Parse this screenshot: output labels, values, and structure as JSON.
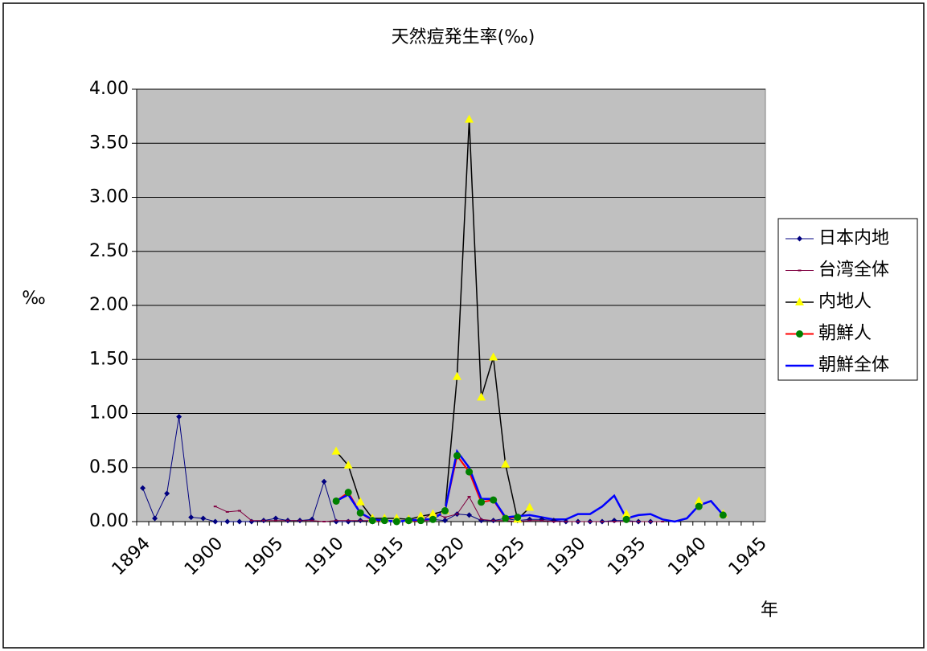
{
  "chart_data": {
    "type": "line",
    "title": "天然痘発生率(‰)",
    "x_label": "年",
    "y_label": "‰",
    "categories": [
      "1894",
      null,
      null,
      null,
      null,
      null,
      "1900",
      null,
      null,
      null,
      null,
      "1905",
      null,
      null,
      null,
      null,
      "1910",
      null,
      null,
      null,
      null,
      "1915",
      null,
      null,
      null,
      null,
      "1920",
      null,
      null,
      null,
      null,
      "1925",
      null,
      null,
      null,
      null,
      "1930",
      null,
      null,
      null,
      null,
      "1935",
      null,
      null,
      null,
      null,
      "1940",
      null,
      null,
      null,
      null,
      "1945"
    ],
    "ylim": [
      0,
      4
    ],
    "yticks": [
      {
        "value": 0,
        "label": "0.00"
      },
      {
        "value": 0.5,
        "label": "0.50"
      },
      {
        "value": 1,
        "label": "1.00"
      },
      {
        "value": 1.5,
        "label": "1.50"
      },
      {
        "value": 2,
        "label": "2.00"
      },
      {
        "value": 2.5,
        "label": "2.50"
      },
      {
        "value": 3,
        "label": "3.00"
      },
      {
        "value": 3.5,
        "label": "3.50"
      },
      {
        "value": 4,
        "label": "4.00"
      }
    ],
    "grid": true,
    "legend": "right",
    "series": [
      {
        "name": "日本内地",
        "color": "#000080",
        "marker": "diamond",
        "width": 1,
        "values": [
          0.31,
          0.03,
          0.26,
          0.97,
          0.04,
          0.03,
          0.0,
          0.0,
          0.0,
          0.0,
          0.01,
          0.03,
          0.01,
          0.01,
          0.02,
          0.37,
          0.0,
          0.0,
          0.01,
          0.0,
          0.01,
          0.01,
          0.0,
          0.01,
          0.02,
          0.01,
          0.07,
          0.06,
          0.01,
          0.01,
          0.03,
          0.01,
          0.02,
          0.02,
          0.01,
          0.0,
          0.0,
          0.0,
          0.0,
          0.01,
          0.01,
          0.0,
          0.0,
          null,
          null,
          null,
          null,
          null,
          null,
          null,
          null,
          null
        ]
      },
      {
        "name": "台湾全体",
        "color": "#800040",
        "marker": "dash",
        "width": 1,
        "values": [
          null,
          null,
          null,
          null,
          null,
          null,
          0.14,
          0.09,
          0.1,
          0.01,
          0.01,
          0.01,
          0.01,
          0.01,
          0.01,
          0.0,
          0.01,
          0.01,
          0.01,
          0.01,
          0.0,
          0.0,
          0.0,
          0.01,
          0.08,
          0.04,
          0.07,
          0.23,
          0.02,
          0.01,
          0.01,
          0.0,
          0.01,
          0.01,
          0.0,
          0.0,
          0.0,
          0.0,
          0.0,
          0.0,
          0.0,
          0.0,
          0.0,
          0.0,
          null,
          null,
          null,
          null,
          null,
          null,
          null,
          null
        ]
      },
      {
        "name": "内地人",
        "color": "#000000",
        "marker": "triangle",
        "marker_color": "#ffff00",
        "width": 1.5,
        "values": [
          null,
          null,
          null,
          null,
          null,
          null,
          null,
          null,
          null,
          null,
          null,
          null,
          null,
          null,
          null,
          null,
          0.65,
          0.52,
          0.18,
          0.03,
          0.03,
          0.03,
          0.02,
          0.05,
          0.07,
          0.1,
          1.34,
          3.72,
          1.15,
          1.52,
          0.53,
          0.02,
          0.13,
          null,
          null,
          null,
          null,
          null,
          null,
          null,
          0.07,
          null,
          null,
          null,
          null,
          null,
          0.19,
          null,
          0.07,
          null,
          null,
          null
        ]
      },
      {
        "name": "朝鮮人",
        "color": "#ff0000",
        "marker": "circle",
        "marker_color": "#008000",
        "width": 2,
        "values": [
          null,
          null,
          null,
          null,
          null,
          null,
          null,
          null,
          null,
          null,
          null,
          null,
          null,
          null,
          null,
          null,
          0.19,
          0.27,
          0.08,
          0.01,
          0.01,
          0.0,
          0.01,
          0.01,
          0.02,
          0.1,
          0.61,
          0.46,
          0.18,
          0.2,
          0.03,
          0.04,
          null,
          null,
          null,
          null,
          null,
          null,
          null,
          null,
          0.02,
          null,
          null,
          null,
          null,
          null,
          0.14,
          null,
          0.06,
          null,
          null,
          null
        ]
      },
      {
        "name": "朝鮮全体",
        "color": "#0000ff",
        "marker": "none",
        "width": 2.5,
        "values": [
          null,
          null,
          null,
          null,
          null,
          null,
          null,
          null,
          null,
          null,
          null,
          null,
          null,
          null,
          null,
          null,
          0.19,
          0.25,
          0.08,
          0.02,
          0.01,
          0.0,
          0.01,
          0.02,
          0.02,
          0.1,
          0.65,
          0.5,
          0.21,
          0.21,
          0.04,
          0.05,
          0.06,
          0.04,
          0.02,
          0.02,
          0.07,
          0.07,
          0.14,
          0.24,
          0.03,
          0.06,
          0.07,
          0.02,
          0.0,
          0.03,
          0.15,
          0.19,
          0.06,
          null,
          null,
          null
        ]
      }
    ]
  }
}
